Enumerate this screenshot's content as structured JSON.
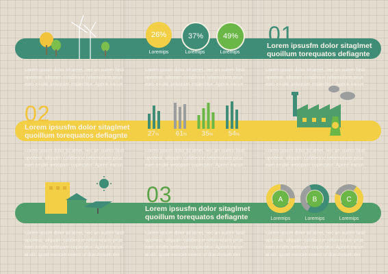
{
  "section1": {
    "number": "01",
    "heading_line1": "Lorem ipsusfm dolor sitaglmet",
    "heading_line2": "quoillum torequatos defiagnte",
    "circles": [
      {
        "value": "26%",
        "caption": "Loremips",
        "color": "#f3cf45"
      },
      {
        "value": "37%",
        "caption": "Loremips",
        "color": "#3f8d76"
      },
      {
        "value": "49%",
        "caption": "Loremips",
        "color": "#6ab646"
      }
    ]
  },
  "section2": {
    "number": "02",
    "heading_line1": "Lorem ipsusfm dolor sitaglmet",
    "heading_line2": "quoillum torequatos defiagnte",
    "bars": [
      {
        "label": "27",
        "unit": "%",
        "heights": [
          0.55,
          0.85,
          0.65
        ],
        "color": "#3f8d76"
      },
      {
        "label": "61",
        "unit": "%",
        "heights": [
          0.95,
          0.8,
          0.9
        ],
        "color": "#9c9e9d"
      },
      {
        "label": "35",
        "unit": "%",
        "heights": [
          0.5,
          0.75,
          0.95,
          0.6
        ],
        "color": "#6ab646"
      },
      {
        "label": "54",
        "unit": "%",
        "heights": [
          0.85,
          1.0,
          0.7
        ],
        "color": "#3f8d76"
      }
    ]
  },
  "section3": {
    "number": "03",
    "heading_line1": "Lorem ipsusfm dolor sitaglmet",
    "heading_line2": "quoillum torequatos defiagnte",
    "rings": [
      {
        "letter": "A",
        "caption": "Loremips"
      },
      {
        "letter": "B",
        "caption": "Loremips"
      },
      {
        "letter": "C",
        "caption": "Loremips"
      }
    ]
  },
  "paragraph": {
    "line1": "Lorem ipsum dolor sit amet, nec an autem fasti",
    "line2": "oporteat, aliquam cotidieque reformidans prua",
    "line3": "eam eruditi antiopam coplectitur. Aperiri iracun",
    "line4": "ai vix, quod nemore cetero ut duo Assum det"
  },
  "colors": {
    "background": "#e3dccf",
    "green": "#4f9d6a",
    "teal": "#3f8d76",
    "yellow": "#f3cf45"
  }
}
